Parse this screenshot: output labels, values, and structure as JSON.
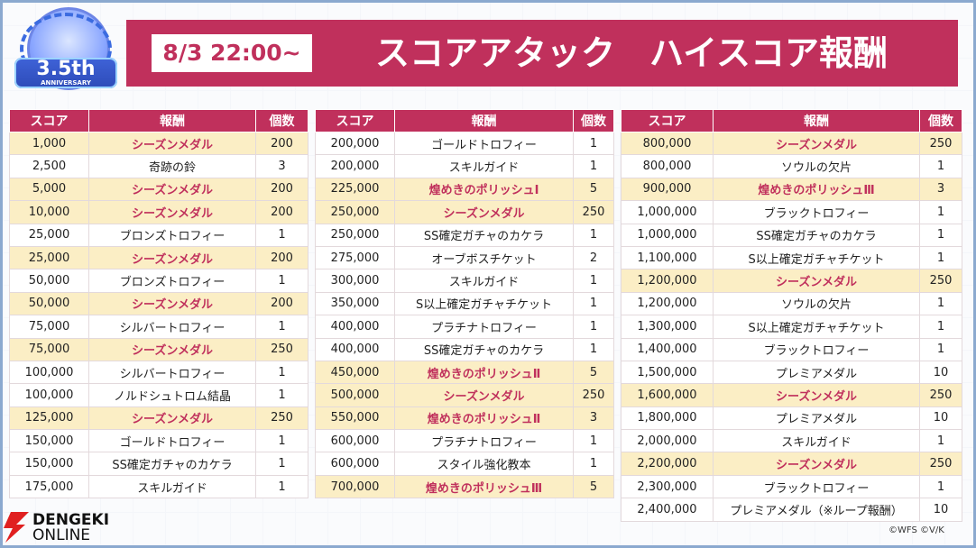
{
  "logo": {
    "main": "3.5th",
    "sub": "ANNIVERSARY"
  },
  "header": {
    "date": "8/3 22:00~",
    "title": "スコアアタック　ハイスコア報酬"
  },
  "columns": {
    "score": "スコア",
    "reward": "報酬",
    "count": "個数"
  },
  "tables": [
    [
      {
        "score": "1,000",
        "reward": "シーズンメダル",
        "count": "200",
        "hl": true
      },
      {
        "score": "2,500",
        "reward": "奇跡の鈴",
        "count": "3",
        "hl": false
      },
      {
        "score": "5,000",
        "reward": "シーズンメダル",
        "count": "200",
        "hl": true
      },
      {
        "score": "10,000",
        "reward": "シーズンメダル",
        "count": "200",
        "hl": true
      },
      {
        "score": "25,000",
        "reward": "ブロンズトロフィー",
        "count": "1",
        "hl": false
      },
      {
        "score": "25,000",
        "reward": "シーズンメダル",
        "count": "200",
        "hl": true
      },
      {
        "score": "50,000",
        "reward": "ブロンズトロフィー",
        "count": "1",
        "hl": false
      },
      {
        "score": "50,000",
        "reward": "シーズンメダル",
        "count": "200",
        "hl": true
      },
      {
        "score": "75,000",
        "reward": "シルバートロフィー",
        "count": "1",
        "hl": false
      },
      {
        "score": "75,000",
        "reward": "シーズンメダル",
        "count": "250",
        "hl": true
      },
      {
        "score": "100,000",
        "reward": "シルバートロフィー",
        "count": "1",
        "hl": false
      },
      {
        "score": "100,000",
        "reward": "ノルドシュトロム結晶",
        "count": "1",
        "hl": false
      },
      {
        "score": "125,000",
        "reward": "シーズンメダル",
        "count": "250",
        "hl": true
      },
      {
        "score": "150,000",
        "reward": "ゴールドトロフィー",
        "count": "1",
        "hl": false
      },
      {
        "score": "150,000",
        "reward": "SS確定ガチャのカケラ",
        "count": "1",
        "hl": false
      },
      {
        "score": "175,000",
        "reward": "スキルガイド",
        "count": "1",
        "hl": false
      }
    ],
    [
      {
        "score": "200,000",
        "reward": "ゴールドトロフィー",
        "count": "1",
        "hl": false
      },
      {
        "score": "200,000",
        "reward": "スキルガイド",
        "count": "1",
        "hl": false
      },
      {
        "score": "225,000",
        "reward": "煌めきのポリッシュⅠ",
        "count": "5",
        "hl": true
      },
      {
        "score": "250,000",
        "reward": "シーズンメダル",
        "count": "250",
        "hl": true
      },
      {
        "score": "250,000",
        "reward": "SS確定ガチャのカケラ",
        "count": "1",
        "hl": false
      },
      {
        "score": "275,000",
        "reward": "オーブボスチケット",
        "count": "2",
        "hl": false
      },
      {
        "score": "300,000",
        "reward": "スキルガイド",
        "count": "1",
        "hl": false
      },
      {
        "score": "350,000",
        "reward": "S以上確定ガチャチケット",
        "count": "1",
        "hl": false
      },
      {
        "score": "400,000",
        "reward": "プラチナトロフィー",
        "count": "1",
        "hl": false
      },
      {
        "score": "400,000",
        "reward": "SS確定ガチャのカケラ",
        "count": "1",
        "hl": false
      },
      {
        "score": "450,000",
        "reward": "煌めきのポリッシュⅡ",
        "count": "5",
        "hl": true
      },
      {
        "score": "500,000",
        "reward": "シーズンメダル",
        "count": "250",
        "hl": true
      },
      {
        "score": "550,000",
        "reward": "煌めきのポリッシュⅡ",
        "count": "3",
        "hl": true
      },
      {
        "score": "600,000",
        "reward": "プラチナトロフィー",
        "count": "1",
        "hl": false
      },
      {
        "score": "600,000",
        "reward": "スタイル強化教本",
        "count": "1",
        "hl": false
      },
      {
        "score": "700,000",
        "reward": "煌めきのポリッシュⅢ",
        "count": "5",
        "hl": true
      }
    ],
    [
      {
        "score": "800,000",
        "reward": "シーズンメダル",
        "count": "250",
        "hl": true
      },
      {
        "score": "800,000",
        "reward": "ソウルの欠片",
        "count": "1",
        "hl": false
      },
      {
        "score": "900,000",
        "reward": "煌めきのポリッシュⅢ",
        "count": "3",
        "hl": true
      },
      {
        "score": "1,000,000",
        "reward": "ブラックトロフィー",
        "count": "1",
        "hl": false
      },
      {
        "score": "1,000,000",
        "reward": "SS確定ガチャのカケラ",
        "count": "1",
        "hl": false
      },
      {
        "score": "1,100,000",
        "reward": "S以上確定ガチャチケット",
        "count": "1",
        "hl": false
      },
      {
        "score": "1,200,000",
        "reward": "シーズンメダル",
        "count": "250",
        "hl": true
      },
      {
        "score": "1,200,000",
        "reward": "ソウルの欠片",
        "count": "1",
        "hl": false
      },
      {
        "score": "1,300,000",
        "reward": "S以上確定ガチャチケット",
        "count": "1",
        "hl": false
      },
      {
        "score": "1,400,000",
        "reward": "ブラックトロフィー",
        "count": "1",
        "hl": false
      },
      {
        "score": "1,500,000",
        "reward": "プレミアメダル",
        "count": "10",
        "hl": false
      },
      {
        "score": "1,600,000",
        "reward": "シーズンメダル",
        "count": "250",
        "hl": true
      },
      {
        "score": "1,800,000",
        "reward": "プレミアメダル",
        "count": "10",
        "hl": false
      },
      {
        "score": "2,000,000",
        "reward": "スキルガイド",
        "count": "1",
        "hl": false
      },
      {
        "score": "2,200,000",
        "reward": "シーズンメダル",
        "count": "250",
        "hl": true
      },
      {
        "score": "2,300,000",
        "reward": "ブラックトロフィー",
        "count": "1",
        "hl": false
      },
      {
        "score": "2,400,000",
        "reward": "プレミアメダル（※ループ報酬）",
        "count": "10",
        "hl": false
      }
    ]
  ],
  "credit": "©WFS ©V/K",
  "watermark": {
    "line1": "DENGEKI",
    "line2": "ONLINE"
  },
  "colors": {
    "accent": "#c0305c",
    "highlight": "#fbeec5"
  }
}
